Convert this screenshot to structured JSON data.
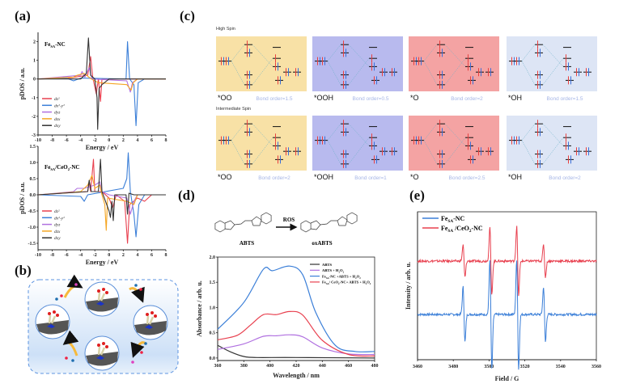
{
  "panels": {
    "a": "(a)",
    "b": "(b)",
    "c": "(c)",
    "d": "(d)",
    "e": "(e)"
  },
  "colors": {
    "dz2": "#e8404f",
    "dx2y2": "#3b7fd8",
    "dyz": "#b070e0",
    "dzx": "#f5a623",
    "dxy": "#333333"
  },
  "diagram_c": {
    "rows": [
      {
        "title": "High Spin",
        "cells": [
          {
            "species": "*OO",
            "bond": "Bond order=1.5",
            "fill": "#f8e1a6"
          },
          {
            "species": "*OOH",
            "bond": "Bond order=0.5",
            "fill": "#b8baee"
          },
          {
            "species": "*O",
            "bond": "Bond order=2",
            "fill": "#f4a3a3"
          },
          {
            "species": "*OH",
            "bond": "Bond order=1.5",
            "fill": "#dde5f5"
          }
        ]
      },
      {
        "title": "Intermediate Spin",
        "cells": [
          {
            "species": "*OO",
            "bond": "Bond order=2",
            "fill": "#f8e1a6"
          },
          {
            "species": "*OOH",
            "bond": "Bond order=1",
            "fill": "#b8baee"
          },
          {
            "species": "*O",
            "bond": "Bond order=2.5",
            "fill": "#f4a3a3"
          },
          {
            "species": "*OH",
            "bond": "Bond order=2",
            "fill": "#dde5f5"
          }
        ]
      }
    ]
  },
  "scheme_b": {
    "description_icons": [
      "catalyst-cycle-icon"
    ]
  },
  "reaction_d": {
    "reactant": "ABTS",
    "product": "oxABTS",
    "reagent": "ROS"
  },
  "chart_data": [
    {
      "id": "a_top",
      "type": "line",
      "sample": {
        "main": "Fe",
        "sub": "SA",
        "rest": "-NC"
      },
      "xlabel": "Energy / eV",
      "ylabel": "pDOS / a.u.",
      "xlim": [
        -10,
        8
      ],
      "ylim": [
        -3,
        2.5
      ],
      "xticks": [
        "-10",
        "-8",
        "-6",
        "-4",
        "-2",
        "0",
        "2",
        "4",
        "6",
        "8"
      ],
      "yticks": [
        "2",
        "1",
        "0",
        "-1",
        "-2",
        "-3"
      ],
      "legend": "bottom-left",
      "series": [
        {
          "name": "dz²",
          "key": "dz2",
          "points": [
            [
              -10,
              0
            ],
            [
              -6,
              0.03
            ],
            [
              -3,
              0.2
            ],
            [
              -2.6,
              1.2
            ],
            [
              -2.3,
              0.1
            ],
            [
              -1.8,
              -0.8
            ],
            [
              -1.5,
              0
            ],
            [
              -1.2,
              -1.2
            ],
            [
              -1,
              0
            ],
            [
              8,
              0
            ]
          ]
        },
        {
          "name": "dx²-y²",
          "key": "dx2y2",
          "points": [
            [
              -10,
              0
            ],
            [
              -6,
              0.05
            ],
            [
              -5,
              -0.1
            ],
            [
              -4,
              0.05
            ],
            [
              2.4,
              0
            ],
            [
              2.6,
              2
            ],
            [
              2.9,
              0
            ],
            [
              3.5,
              -0.3
            ],
            [
              3.8,
              -2.5
            ],
            [
              4.1,
              -0.2
            ],
            [
              5,
              0
            ],
            [
              8,
              0
            ]
          ]
        },
        {
          "name": "dyz",
          "key": "dyz",
          "points": [
            [
              -10,
              0
            ],
            [
              -4,
              0.2
            ],
            [
              -3.8,
              0.4
            ],
            [
              -3.4,
              0.1
            ],
            [
              -2.8,
              0.6
            ],
            [
              -2.4,
              0
            ],
            [
              2.5,
              -0.1
            ],
            [
              3,
              -0.7
            ],
            [
              3.3,
              -0.2
            ],
            [
              4,
              0
            ],
            [
              8,
              0
            ]
          ]
        },
        {
          "name": "dzx",
          "key": "dzx",
          "points": [
            [
              -10,
              0
            ],
            [
              -5,
              0.1
            ],
            [
              -4.5,
              0.2
            ],
            [
              -3.5,
              0.3
            ],
            [
              -2.5,
              0
            ],
            [
              -1.5,
              -0.2
            ],
            [
              2.5,
              -0.3
            ],
            [
              3.1,
              -0.6
            ],
            [
              3.4,
              -0.2
            ],
            [
              4,
              0
            ],
            [
              8,
              0
            ]
          ]
        },
        {
          "name": "dxy",
          "key": "dxy",
          "points": [
            [
              -10,
              0
            ],
            [
              -4,
              0
            ],
            [
              -3.2,
              0.3
            ],
            [
              -2.9,
              2.2
            ],
            [
              -2.6,
              0.2
            ],
            [
              -2,
              0
            ],
            [
              -1.7,
              -1
            ],
            [
              -1.6,
              -2.7
            ],
            [
              -1.4,
              -0.5
            ],
            [
              -1,
              -0.3
            ],
            [
              0,
              0
            ],
            [
              8,
              0
            ]
          ]
        }
      ]
    },
    {
      "id": "a_bottom",
      "type": "line",
      "sample": {
        "main": "Fe",
        "sub": "SA",
        "rest": "/CeO",
        "sub2": "2",
        "rest2": "-NC"
      },
      "xlabel": "Energy / eV",
      "ylabel": "pDOS / a.u.",
      "xlim": [
        -10,
        8
      ],
      "ylim": [
        -1.7,
        1.5
      ],
      "xticks": [
        "-10",
        "-8",
        "-6",
        "-4",
        "-2",
        "0",
        "2",
        "4",
        "6",
        "8"
      ],
      "yticks": [
        "1.5",
        "1.0",
        "0.5",
        "0.0",
        "-0.5",
        "-1.0",
        "-1.5"
      ],
      "legend": "bottom-left",
      "series": [
        {
          "name": "dz²",
          "key": "dz2",
          "points": [
            [
              -10,
              0
            ],
            [
              -3,
              0.1
            ],
            [
              -2.8,
              0.4
            ],
            [
              -2.6,
              0.1
            ],
            [
              -2.2,
              1.1
            ],
            [
              -2,
              0.1
            ],
            [
              -1,
              0.1
            ],
            [
              0,
              -0.1
            ],
            [
              0.5,
              -0.4
            ],
            [
              1,
              0
            ],
            [
              2.2,
              -0.2
            ],
            [
              2.6,
              -1.5
            ],
            [
              2.9,
              -0.3
            ],
            [
              4,
              -0.1
            ],
            [
              5,
              -0.2
            ],
            [
              6,
              0
            ],
            [
              8,
              0
            ]
          ]
        },
        {
          "name": "dx²-y²",
          "key": "dx2y2",
          "points": [
            [
              -10,
              0
            ],
            [
              -4,
              -0.05
            ],
            [
              -3.5,
              -0.2
            ],
            [
              -3,
              0
            ],
            [
              2,
              0.2
            ],
            [
              2.5,
              0.5
            ],
            [
              2.7,
              1.3
            ],
            [
              3,
              0.1
            ],
            [
              3.5,
              -0.6
            ],
            [
              3.8,
              -1.3
            ],
            [
              4.2,
              -0.3
            ],
            [
              5,
              0
            ],
            [
              8,
              0
            ]
          ]
        },
        {
          "name": "dyz",
          "key": "dyz",
          "points": [
            [
              -10,
              0
            ],
            [
              -5,
              0.1
            ],
            [
              -4.5,
              0.2
            ],
            [
              -3.5,
              0.2
            ],
            [
              -2,
              0.3
            ],
            [
              -1.3,
              0.4
            ],
            [
              -1,
              0.1
            ],
            [
              0,
              0
            ],
            [
              2.5,
              -0.1
            ],
            [
              3,
              -0.6
            ],
            [
              3.5,
              -0.2
            ],
            [
              4,
              0
            ],
            [
              8,
              0
            ]
          ]
        },
        {
          "name": "dzx",
          "key": "dzx",
          "points": [
            [
              -10,
              0
            ],
            [
              -4,
              0.1
            ],
            [
              -3,
              0.3
            ],
            [
              -2.4,
              0.6
            ],
            [
              -2,
              0.2
            ],
            [
              -1.3,
              0.3
            ],
            [
              -1,
              0
            ],
            [
              -0.6,
              -0.3
            ],
            [
              -0.4,
              -1.1
            ],
            [
              -0.2,
              -0.1
            ],
            [
              2.5,
              -0.2
            ],
            [
              3.5,
              -0.3
            ],
            [
              4,
              0
            ],
            [
              8,
              0
            ]
          ]
        },
        {
          "name": "dxy",
          "key": "dxy",
          "points": [
            [
              -10,
              0
            ],
            [
              -3,
              0.1
            ],
            [
              -2.8,
              0.45
            ],
            [
              -2.5,
              0.1
            ],
            [
              -1.5,
              0.1
            ],
            [
              -1.2,
              1.1
            ],
            [
              -1,
              0.1
            ],
            [
              0,
              -0.5
            ],
            [
              0.2,
              -0.7
            ],
            [
              0.4,
              -0.2
            ],
            [
              0.6,
              -0.8
            ],
            [
              0.8,
              0
            ],
            [
              2.4,
              0
            ],
            [
              2.6,
              -0.6
            ],
            [
              2.8,
              0.05
            ],
            [
              3.5,
              0
            ],
            [
              8,
              0
            ]
          ]
        }
      ]
    },
    {
      "id": "d",
      "type": "line",
      "xlabel": "Wavelength / nm",
      "ylabel": "Absorbance / arb. u.",
      "xlim": [
        360,
        480
      ],
      "ylim": [
        -0.05,
        2.0
      ],
      "xticks": [
        "360",
        "380",
        "400",
        "420",
        "440",
        "460",
        "480"
      ],
      "yticks": [
        "0.0",
        "0.5",
        "1.0",
        "1.5",
        "2.0"
      ],
      "legend": "top-right",
      "series": [
        {
          "name": "ABTS",
          "color": "#333333",
          "points": [
            [
              360,
              0.25
            ],
            [
              370,
              0.12
            ],
            [
              380,
              0.03
            ],
            [
              390,
              0.01
            ],
            [
              420,
              0.01
            ],
            [
              480,
              0
            ]
          ]
        },
        {
          "name": "ABTS + H₂O₂",
          "color": "#b070e0",
          "points": [
            [
              360,
              0.17
            ],
            [
              380,
              0.28
            ],
            [
              395,
              0.43
            ],
            [
              405,
              0.44
            ],
            [
              415,
              0.46
            ],
            [
              425,
              0.42
            ],
            [
              440,
              0.2
            ],
            [
              460,
              0.08
            ],
            [
              480,
              0.07
            ]
          ]
        },
        {
          "name": "Fe_SA-NC +ABTS + H₂O₂",
          "color": "#3b7fd8",
          "points": [
            [
              360,
              0.57
            ],
            [
              380,
              1.1
            ],
            [
              395,
              1.76
            ],
            [
              402,
              1.73
            ],
            [
              415,
              1.82
            ],
            [
              425,
              1.65
            ],
            [
              435,
              0.9
            ],
            [
              450,
              0.25
            ],
            [
              465,
              0.13
            ],
            [
              480,
              0.13
            ]
          ]
        },
        {
          "name": "Fe_SA/ CeO₂-NC+ ABTS + H₂O₂",
          "color": "#e8404f",
          "points": [
            [
              360,
              0.36
            ],
            [
              375,
              0.45
            ],
            [
              385,
              0.65
            ],
            [
              395,
              0.86
            ],
            [
              405,
              0.86
            ],
            [
              415,
              0.92
            ],
            [
              425,
              0.85
            ],
            [
              440,
              0.35
            ],
            [
              460,
              0.07
            ],
            [
              480,
              0.04
            ]
          ]
        }
      ],
      "legend_labels": [
        {
          "parts": [
            "ABTS"
          ]
        },
        {
          "parts": [
            "ABTS + H",
            "2",
            "O",
            "2"
          ]
        },
        {
          "parts": [
            "Fe",
            "SA",
            "-NC +ABTS + H",
            "2",
            "O",
            "2"
          ]
        },
        {
          "parts": [
            "Fe",
            "SA",
            "/ CeO",
            "2",
            "-NC+ ABTS + H",
            "2",
            "O",
            "2"
          ]
        }
      ]
    },
    {
      "id": "e",
      "type": "line",
      "xlabel": "Field / G",
      "ylabel": "Intensity / arb. u.",
      "xlim": [
        3460,
        3560
      ],
      "xticks": [
        "3460",
        "3480",
        "3500",
        "3520",
        "3540",
        "3560"
      ],
      "legend": "top-left",
      "line_positions": [
        3486,
        3501,
        3516,
        3531
      ],
      "series": [
        {
          "name": "Fe_SA-NC",
          "color": "#3b7fd8",
          "baseline": 0,
          "amplitudes": [
            0.6,
            1.2,
            1.2,
            0.6
          ],
          "label": {
            "main": "Fe",
            "sub": "SA",
            "rest": "-NC"
          }
        },
        {
          "name": "Fe_SA /CeO₂-NC",
          "color": "#e8404f",
          "baseline": 1.0,
          "amplitudes": [
            0.35,
            0.75,
            0.75,
            0.35
          ],
          "label": {
            "main": "Fe",
            "sub": "SA",
            "rest": " /CeO",
            "sub2": "2",
            "rest2": "-NC"
          }
        }
      ]
    }
  ]
}
